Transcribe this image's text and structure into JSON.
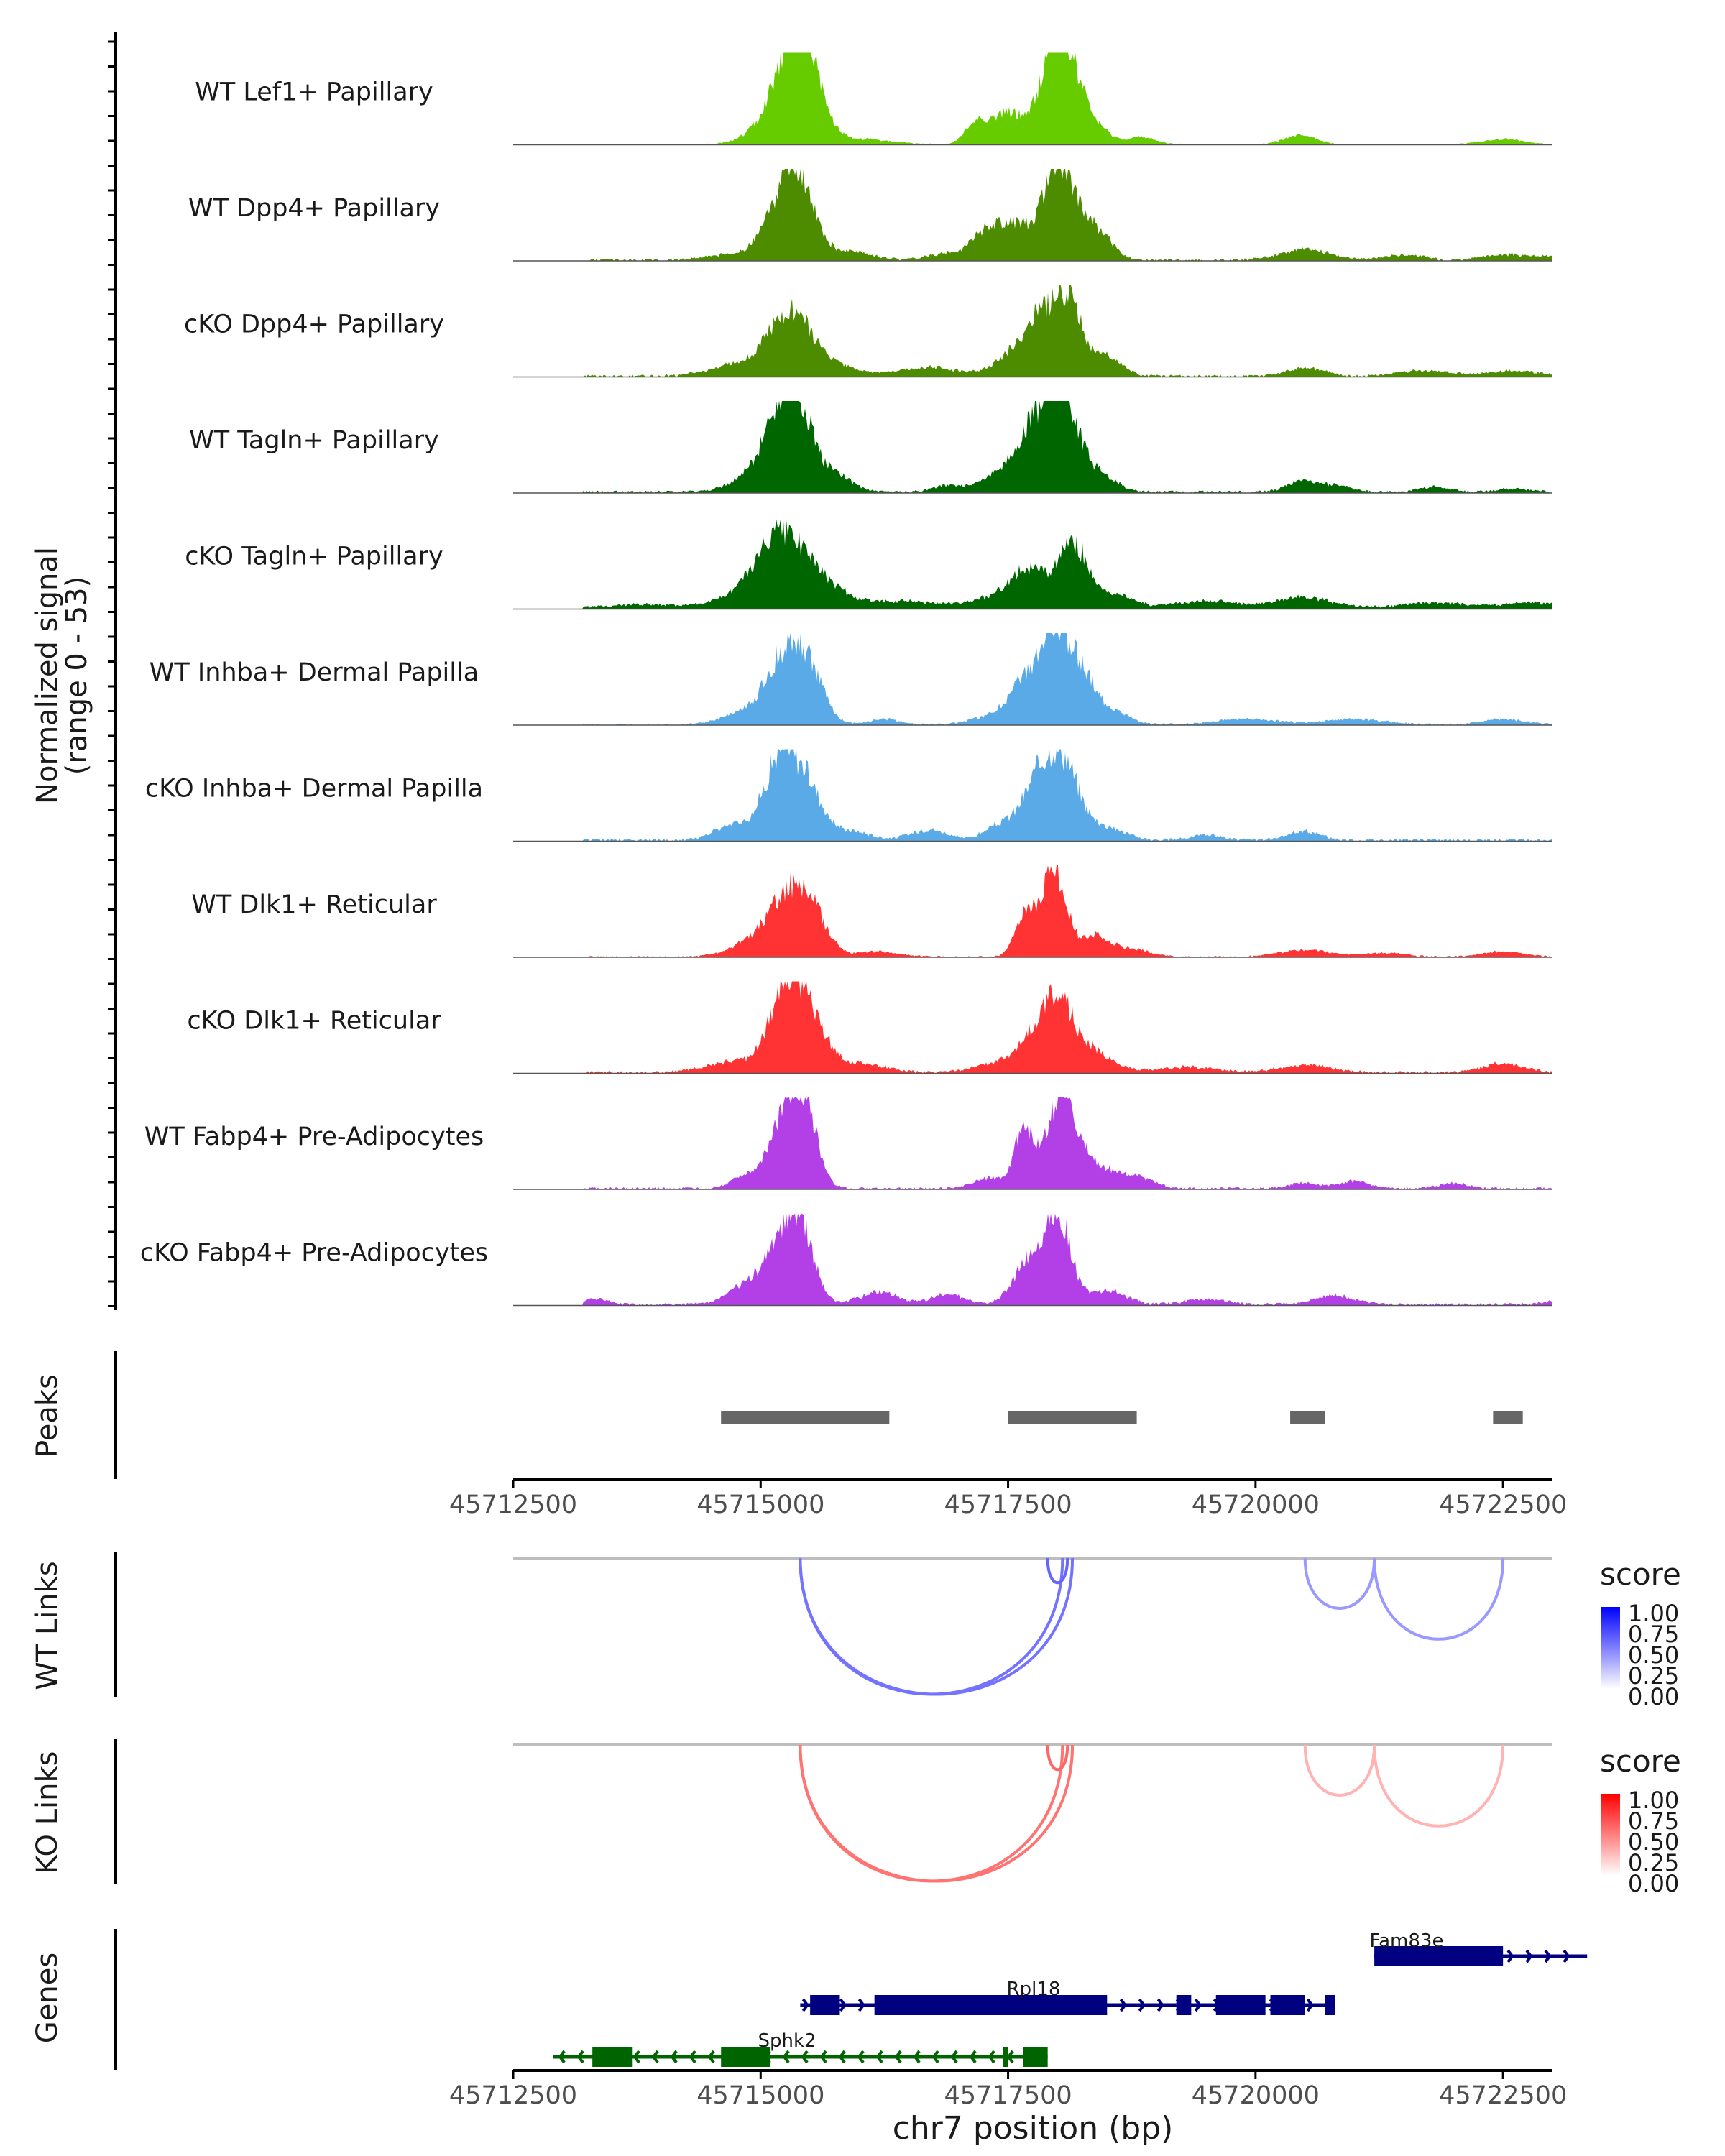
{
  "chart_data": {
    "type": "area",
    "title": "",
    "coverage": {
      "ylabel": "Normalized signal",
      "ylabel_range": "(range 0 - 53)",
      "ylim": [
        0,
        53
      ],
      "tracks": [
        {
          "name": "WT Lef1+ Papillary",
          "color": "#66CC00",
          "peaks": [
            [
              45715100,
              10,
              220
            ],
            [
              45715330,
              48,
              180
            ],
            [
              45715500,
              22,
              160
            ],
            [
              45716000,
              3,
              300
            ],
            [
              45717180,
              12,
              110
            ],
            [
              45717500,
              18,
              160
            ],
            [
              45717970,
              52,
              150
            ],
            [
              45718150,
              25,
              140
            ],
            [
              45718400,
              8,
              140
            ],
            [
              45718850,
              4,
              140
            ],
            [
              45720450,
              5,
              160
            ],
            [
              45722500,
              3,
              200
            ]
          ],
          "noise": 0.6
        },
        {
          "name": "WT Dpp4+ Papillary",
          "color": "#4D8C00",
          "peaks": [
            [
              45714700,
              3,
              250
            ],
            [
              45715200,
              28,
              180
            ],
            [
              45715400,
              35,
              150
            ],
            [
              45715850,
              5,
              250
            ],
            [
              45716900,
              4,
              200
            ],
            [
              45717250,
              12,
              130
            ],
            [
              45717550,
              20,
              180
            ],
            [
              45718000,
              52,
              150
            ],
            [
              45718250,
              15,
              150
            ],
            [
              45718450,
              10,
              130
            ],
            [
              45720500,
              6,
              250
            ],
            [
              45721500,
              3,
              200
            ],
            [
              45722500,
              3,
              200
            ],
            [
              45723000,
              2,
              200
            ]
          ],
          "noise": 1.2
        },
        {
          "name": "cKO Dpp4+ Papillary",
          "color": "#4D8C00",
          "peaks": [
            [
              45714800,
              7,
              280
            ],
            [
              45715300,
              35,
              210
            ],
            [
              45715700,
              6,
              250
            ],
            [
              45716700,
              5,
              300
            ],
            [
              45717600,
              14,
              200
            ],
            [
              45717850,
              28,
              150
            ],
            [
              45718120,
              42,
              130
            ],
            [
              45718500,
              11,
              150
            ],
            [
              45720500,
              5,
              180
            ],
            [
              45721700,
              3,
              250
            ],
            [
              45722600,
              3,
              250
            ]
          ],
          "noise": 1.3
        },
        {
          "name": "WT Tagln+ Papillary",
          "color": "#006600",
          "peaks": [
            [
              45714850,
              6,
              200
            ],
            [
              45715200,
              40,
              180
            ],
            [
              45715400,
              32,
              170
            ],
            [
              45715800,
              8,
              150
            ],
            [
              45716900,
              4,
              150
            ],
            [
              45717350,
              8,
              150
            ],
            [
              45717750,
              34,
              180
            ],
            [
              45718050,
              50,
              170
            ],
            [
              45718450,
              8,
              160
            ],
            [
              45720450,
              6,
              140
            ],
            [
              45720800,
              4,
              150
            ],
            [
              45721800,
              3,
              150
            ],
            [
              45722600,
              2,
              150
            ]
          ],
          "noise": 1.4
        },
        {
          "name": "cKO Tagln+ Papillary",
          "color": "#006600",
          "peaks": [
            [
              45713800,
              2,
              300
            ],
            [
              45714900,
              9,
              300
            ],
            [
              45715200,
              36,
              220
            ],
            [
              45715600,
              14,
              250
            ],
            [
              45716400,
              4,
              300
            ],
            [
              45717350,
              5,
              300
            ],
            [
              45717700,
              20,
              180
            ],
            [
              45718150,
              36,
              150
            ],
            [
              45718550,
              8,
              200
            ],
            [
              45719500,
              4,
              300
            ],
            [
              45720500,
              6,
              280
            ],
            [
              45721800,
              3,
              300
            ],
            [
              45722800,
              3,
              300
            ]
          ],
          "noise": 1.5
        },
        {
          "name": "WT Inhba+ Dermal Papilla",
          "color": "#5BAAE8",
          "peaks": [
            [
              45714800,
              6,
              200
            ],
            [
              45715250,
              40,
              190
            ],
            [
              45715500,
              22,
              150
            ],
            [
              45716250,
              3,
              150
            ],
            [
              45717300,
              4,
              200
            ],
            [
              45717650,
              20,
              160
            ],
            [
              45718000,
              52,
              170
            ],
            [
              45718300,
              18,
              140
            ],
            [
              45718600,
              6,
              150
            ],
            [
              45719900,
              3,
              300
            ],
            [
              45721000,
              3,
              300
            ],
            [
              45722500,
              3,
              200
            ]
          ],
          "noise": 1.0
        },
        {
          "name": "cKO Inhba+ Dermal Papilla",
          "color": "#5BAAE8",
          "peaks": [
            [
              45714750,
              9,
              200
            ],
            [
              45715180,
              42,
              150
            ],
            [
              45715450,
              32,
              160
            ],
            [
              45715900,
              5,
              200
            ],
            [
              45716700,
              6,
              180
            ],
            [
              45717400,
              7,
              150
            ],
            [
              45717800,
              28,
              180
            ],
            [
              45718050,
              40,
              170
            ],
            [
              45718500,
              7,
              180
            ],
            [
              45719500,
              3,
              150
            ],
            [
              45720500,
              5,
              150
            ],
            [
              45723200,
              3,
              100
            ]
          ],
          "noise": 1.6
        },
        {
          "name": "WT Dlk1+ Reticular",
          "color": "#FF3333",
          "peaks": [
            [
              45714850,
              6,
              200
            ],
            [
              45715250,
              30,
              200
            ],
            [
              45715500,
              22,
              170
            ],
            [
              45716200,
              3,
              200
            ],
            [
              45717650,
              22,
              90
            ],
            [
              45717950,
              53,
              130
            ],
            [
              45718400,
              12,
              150
            ],
            [
              45718800,
              4,
              150
            ],
            [
              45720500,
              4,
              250
            ],
            [
              45721300,
              2,
              200
            ],
            [
              45722500,
              3,
              200
            ]
          ],
          "noise": 0.8
        },
        {
          "name": "cKO Dlk1+ Reticular",
          "color": "#FF3333",
          "peaks": [
            [
              45714800,
              7,
              300
            ],
            [
              45715250,
              45,
              150
            ],
            [
              45715500,
              28,
              170
            ],
            [
              45716000,
              5,
              250
            ],
            [
              45717350,
              5,
              200
            ],
            [
              45717700,
              13,
              150
            ],
            [
              45718000,
              42,
              170
            ],
            [
              45718400,
              10,
              180
            ],
            [
              45719300,
              3,
              300
            ],
            [
              45720500,
              4,
              250
            ],
            [
              45722500,
              5,
              200
            ]
          ],
          "noise": 1.4
        },
        {
          "name": "WT Fabp4+ Pre-Adipocytes",
          "color": "#B340E6",
          "peaks": [
            [
              45714850,
              7,
              150
            ],
            [
              45715250,
              40,
              150
            ],
            [
              45715450,
              38,
              130
            ],
            [
              45717300,
              6,
              150
            ],
            [
              45717650,
              32,
              90
            ],
            [
              45718050,
              52,
              170
            ],
            [
              45718500,
              10,
              180
            ],
            [
              45718850,
              5,
              150
            ],
            [
              45720500,
              3,
              150
            ],
            [
              45721000,
              4,
              150
            ],
            [
              45722000,
              3,
              150
            ]
          ],
          "noise": 1.3
        },
        {
          "name": "cKO Fabp4+ Pre-Adipocytes",
          "color": "#B340E6",
          "peaks": [
            [
              45713300,
              3,
              150
            ],
            [
              45714900,
              12,
              200
            ],
            [
              45715200,
              27,
              150
            ],
            [
              45715400,
              40,
              140
            ],
            [
              45716200,
              7,
              200
            ],
            [
              45716900,
              6,
              150
            ],
            [
              45717700,
              24,
              150
            ],
            [
              45718000,
              52,
              130
            ],
            [
              45718500,
              8,
              180
            ],
            [
              45719500,
              3,
              200
            ],
            [
              45720800,
              5,
              200
            ],
            [
              45723200,
              5,
              150
            ]
          ],
          "noise": 1.5
        }
      ]
    },
    "peaks_track": {
      "label": "Peaks",
      "color": "#666666",
      "regions": [
        [
          45714600,
          45716300
        ],
        [
          45717500,
          45718800
        ],
        [
          45720350,
          45720700
        ],
        [
          45722400,
          45722700
        ]
      ]
    },
    "x_axis": {
      "xlim": [
        45712500,
        45723000
      ],
      "ticks": [
        45712500,
        45715000,
        45717500,
        45720000,
        45722500
      ],
      "tick_labels": [
        "45712500",
        "45715000",
        "45717500",
        "45720000",
        "45722500"
      ],
      "xlabel": "chr7 position (bp)"
    },
    "links": [
      {
        "label": "WT Links",
        "legend_title": "score",
        "legend_ticks": [
          "1.00",
          "0.75",
          "0.50",
          "0.25",
          "0.00"
        ],
        "color_low": "#FFFFFF",
        "color_high": "#0000FF",
        "arcs": [
          {
            "start": 45715400,
            "end": 45718050,
            "score": 0.55
          },
          {
            "start": 45715400,
            "end": 45718150,
            "score": 0.55
          },
          {
            "start": 45717900,
            "end": 45718100,
            "score": 0.6
          },
          {
            "start": 45720500,
            "end": 45721200,
            "score": 0.4
          },
          {
            "start": 45721200,
            "end": 45722500,
            "score": 0.4
          }
        ]
      },
      {
        "label": "KO Links",
        "legend_title": "score",
        "legend_ticks": [
          "1.00",
          "0.75",
          "0.50",
          "0.25",
          "0.00"
        ],
        "color_low": "#FFFFFF",
        "color_high": "#FF0000",
        "arcs": [
          {
            "start": 45715400,
            "end": 45718050,
            "score": 0.55
          },
          {
            "start": 45715400,
            "end": 45718150,
            "score": 0.55
          },
          {
            "start": 45717900,
            "end": 45718100,
            "score": 0.6
          },
          {
            "start": 45720500,
            "end": 45721200,
            "score": 0.3
          },
          {
            "start": 45721200,
            "end": 45722500,
            "score": 0.3
          }
        ]
      }
    ],
    "genes": {
      "label": "Genes",
      "items": [
        {
          "name": "Fam83e",
          "color": "#000080",
          "strand": "+",
          "start": 45721200,
          "end": 45723350,
          "exons": [
            [
              45721200,
              45722500
            ]
          ]
        },
        {
          "name": "Rpl18",
          "color": "#000080",
          "strand": "+",
          "start": 45715400,
          "end": 45720800,
          "exons": [
            [
              45715500,
              45715800
            ],
            [
              45716150,
              45718500
            ],
            [
              45719200,
              45719350
            ],
            [
              45719600,
              45720100
            ],
            [
              45720150,
              45720500
            ],
            [
              45720700,
              45720800
            ]
          ]
        },
        {
          "name": "Sphk2",
          "color": "#006400",
          "strand": "-",
          "start": 45712900,
          "end": 45717900,
          "exons": [
            [
              45713300,
              45713700
            ],
            [
              45714600,
              45715100
            ],
            [
              45717450,
              45717500
            ],
            [
              45717650,
              45717900
            ]
          ]
        }
      ]
    }
  }
}
